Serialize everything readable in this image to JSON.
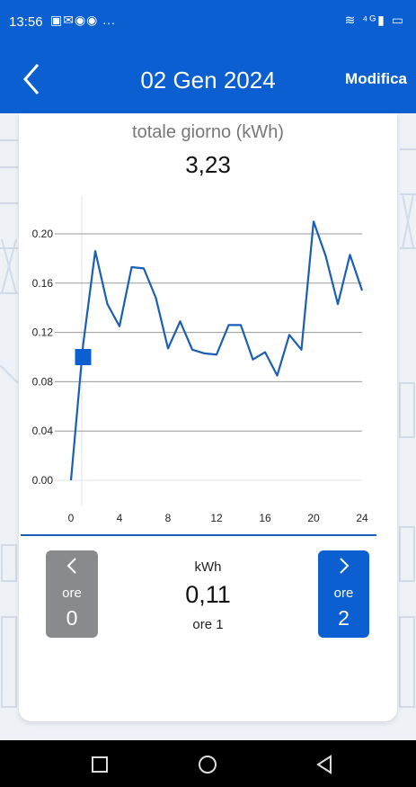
{
  "status_bar": {
    "time": "13:56",
    "left_icons": "▣✉◉◉ ...",
    "right_icons": "≋ ⁴ᴳ▮ ▭"
  },
  "app_bar": {
    "title": "02 Gen 2024",
    "edit_label": "Modifica",
    "back_icon": "chevron-left-icon"
  },
  "summary": {
    "label": "totale giorno (kWh)",
    "value": "3,23"
  },
  "chart_data": {
    "type": "line",
    "x": [
      0,
      1,
      2,
      3,
      4,
      5,
      6,
      7,
      8,
      9,
      10,
      11,
      12,
      13,
      14,
      15,
      16,
      17,
      18,
      19,
      20,
      21,
      22,
      23,
      24
    ],
    "series": [
      {
        "values": [
          0.0,
          0.11,
          0.186,
          0.143,
          0.125,
          0.173,
          0.172,
          0.148,
          0.107,
          0.129,
          0.106,
          0.103,
          0.102,
          0.126,
          0.126,
          0.098,
          0.104,
          0.085,
          0.118,
          0.106,
          0.21,
          0.182,
          0.143,
          0.183,
          0.154
        ],
        "color": "#1a5fb4"
      }
    ],
    "highlight": {
      "x": 1,
      "y": 0.1
    },
    "xticks": [
      "0",
      "4",
      "8",
      "12",
      "16",
      "20",
      "24"
    ],
    "yticks": [
      "0.00",
      "0.04",
      "0.08",
      "0.12",
      "0.16",
      "0.20"
    ],
    "xlim": [
      0,
      24
    ],
    "ylim": [
      0,
      0.2
    ],
    "grid": true
  },
  "hour_nav": {
    "prev": {
      "icon": "chevron-left-icon",
      "label": "ore",
      "number": "0"
    },
    "next": {
      "icon": "chevron-right-icon",
      "label": "ore",
      "number": "2"
    },
    "unit": "kWh",
    "value": "0,11",
    "hour_label": "ore 1"
  },
  "colors": {
    "primary": "#0b5fd1",
    "line": "#1a5fb4",
    "prev_button": "#888a8e"
  },
  "system_nav": {
    "recent_icon": "square-icon",
    "home_icon": "circle-icon",
    "back_icon": "triangle-back-icon"
  }
}
